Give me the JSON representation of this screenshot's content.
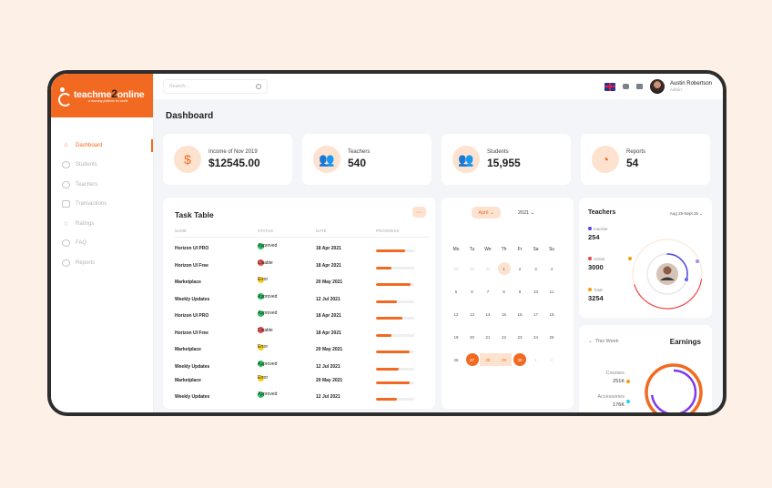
{
  "brand": {
    "name_part1": "teachme",
    "name_two": "2",
    "name_part2": "online",
    "tagline": "a learning platform for world",
    "primary_color": "#f26a21"
  },
  "sidebar": {
    "items": [
      {
        "label": "Dashboard",
        "icon": "home-icon",
        "active": true
      },
      {
        "label": "Students",
        "icon": "students-icon",
        "active": false
      },
      {
        "label": "Teachers",
        "icon": "teachers-icon",
        "active": false
      },
      {
        "label": "Transactions",
        "icon": "transactions-icon",
        "active": false
      },
      {
        "label": "Ratings",
        "icon": "star-icon",
        "active": false
      },
      {
        "label": "FAQ",
        "icon": "faq-icon",
        "active": false
      },
      {
        "label": "Reports",
        "icon": "reports-icon",
        "active": false
      }
    ]
  },
  "topbar": {
    "search_placeholder": "Search....",
    "user_name": "Austin Robertson",
    "user_role": "Admin"
  },
  "page_title": "Dashboard",
  "stats": [
    {
      "label": "Income of Nov 2019",
      "value": "$12545.00",
      "icon": "dollar-icon",
      "glyph": "$"
    },
    {
      "label": "Teachers",
      "value": "540",
      "icon": "teachers-group-icon",
      "glyph": "👥"
    },
    {
      "label": "Students",
      "value": "15,955",
      "icon": "students-group-icon",
      "glyph": "👥"
    },
    {
      "label": "Reports",
      "value": "54",
      "icon": "reports-chart-icon",
      "glyph": "◔"
    }
  ],
  "task_table": {
    "title": "Task Table",
    "more_label": "···",
    "columns": [
      "NAME",
      "STATUS",
      "DATE",
      "PROGRESS"
    ],
    "rows": [
      {
        "name": "Horizon UI PRO",
        "status": "Approved",
        "status_type": "approved",
        "date": "18 Apr 2021",
        "progress": 0.75
      },
      {
        "name": "Horizon UI Free",
        "status": "Disable",
        "status_type": "disable",
        "date": "18 Apr 2021",
        "progress": 0.4
      },
      {
        "name": "Marketplace",
        "status": "Error",
        "status_type": "error",
        "date": "20 May 2021",
        "progress": 0.9
      },
      {
        "name": "Weekly Updates",
        "status": "Approved",
        "status_type": "approved",
        "date": "12 Jul 2021",
        "progress": 0.55
      },
      {
        "name": "Horizon UI PRO",
        "status": "Approved",
        "status_type": "approved",
        "date": "18 Apr 2021",
        "progress": 0.7
      },
      {
        "name": "Horizon UI Free",
        "status": "Disable",
        "status_type": "disable",
        "date": "18 Apr 2021",
        "progress": 0.4
      },
      {
        "name": "Marketplace",
        "status": "Error",
        "status_type": "error",
        "date": "20 May 2021",
        "progress": 0.88
      },
      {
        "name": "Weekly Updates",
        "status": "Approved",
        "status_type": "approved",
        "date": "12 Jul 2021",
        "progress": 0.6
      },
      {
        "name": "Marketplace",
        "status": "Error",
        "status_type": "error",
        "date": "20 May 2021",
        "progress": 0.88
      },
      {
        "name": "Weekly Updates",
        "status": "Approved",
        "status_type": "approved",
        "date": "12 Jul 2021",
        "progress": 0.55
      }
    ]
  },
  "calendar": {
    "month_label": "April ⌄",
    "year_label": "2021 ⌄",
    "weekdays": [
      "Mo",
      "Tu",
      "We",
      "Th",
      "Fr",
      "Sa",
      "Su"
    ],
    "weeks": [
      [
        {
          "d": "29",
          "t": "muted"
        },
        {
          "d": "30",
          "t": "muted"
        },
        {
          "d": "31",
          "t": "muted"
        },
        {
          "d": "1",
          "t": "today"
        },
        {
          "d": "2"
        },
        {
          "d": "3"
        },
        {
          "d": "4"
        }
      ],
      [
        {
          "d": "5"
        },
        {
          "d": "6"
        },
        {
          "d": "7"
        },
        {
          "d": "8"
        },
        {
          "d": "9"
        },
        {
          "d": "10"
        },
        {
          "d": "11"
        }
      ],
      [
        {
          "d": "12"
        },
        {
          "d": "13"
        },
        {
          "d": "14"
        },
        {
          "d": "15"
        },
        {
          "d": "16"
        },
        {
          "d": "17"
        },
        {
          "d": "18"
        }
      ],
      [
        {
          "d": "19"
        },
        {
          "d": "20"
        },
        {
          "d": "21"
        },
        {
          "d": "22"
        },
        {
          "d": "23"
        },
        {
          "d": "24"
        },
        {
          "d": "25"
        }
      ],
      [
        {
          "d": "26"
        },
        {
          "d": "27",
          "t": "sel"
        },
        {
          "d": "28",
          "t": "range"
        },
        {
          "d": "29",
          "t": "range"
        },
        {
          "d": "30",
          "t": "sel"
        },
        {
          "d": "1",
          "t": "muted"
        },
        {
          "d": "2",
          "t": "muted"
        }
      ]
    ]
  },
  "teachers_card": {
    "title": "Teachers",
    "range": "Aug 25-Sept 25 ⌄",
    "legend": [
      {
        "label": "Inactive",
        "value": "254",
        "color": "#4f46e5"
      },
      {
        "label": "Active",
        "value": "3000",
        "color": "#ef4444"
      },
      {
        "label": "Total",
        "value": "3254",
        "color": "#f59e0b"
      }
    ],
    "inactive_fraction": 0.078
  },
  "earnings": {
    "period": "This Week",
    "title": "Earnings",
    "items": [
      {
        "label": "Courses",
        "value": "251K"
      },
      {
        "label": "Accessories",
        "value": "176K"
      }
    ]
  }
}
